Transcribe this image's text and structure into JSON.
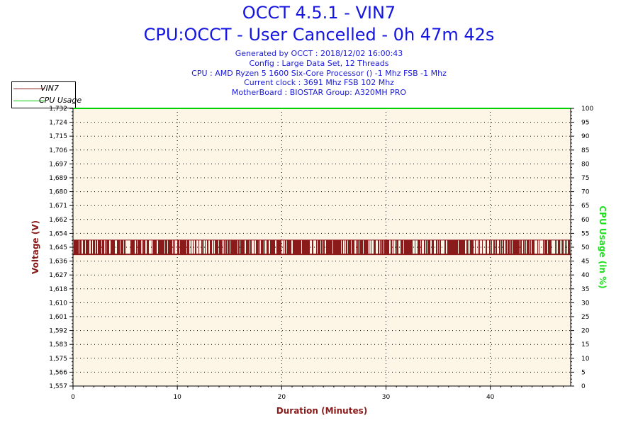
{
  "header": {
    "title": "OCCT 4.5.1 - VIN7",
    "subtitle": "CPU:OCCT - User Cancelled - 0h 47m 42s",
    "info_lines": [
      "Generated by OCCT : 2018/12/02 16:00:43",
      "Config : Large Data Set, 12 Threads",
      "CPU : AMD Ryzen 5 1600 Six-Core Processor () -1 Mhz FSB -1 Mhz",
      "Current clock : 3691 Mhz FSB 102 Mhz",
      "MotherBoard : BIOSTAR Group: A320MH PRO"
    ]
  },
  "legend": {
    "items": [
      {
        "label": "VIN7",
        "color": "#8b1a1a"
      },
      {
        "label": "CPU Usage",
        "color": "#00d000"
      }
    ]
  },
  "chart_data": {
    "type": "line",
    "xlabel": "Duration (Minutes)",
    "ylabel": "Voltage (V)",
    "y2label": "CPU Usage (in %)",
    "xlim": [
      0,
      47.7
    ],
    "x_ticks": [
      "0",
      "10",
      "20",
      "30",
      "40"
    ],
    "ylim": [
      1.557,
      1.732
    ],
    "y_ticks": [
      "1,557",
      "1,566",
      "1,575",
      "1,583",
      "1,592",
      "1,601",
      "1,610",
      "1,618",
      "1,627",
      "1,636",
      "1,645",
      "1,654",
      "1,662",
      "1,671",
      "1,680",
      "1,689",
      "1,697",
      "1,706",
      "1,715",
      "1,724",
      "1,732"
    ],
    "y2lim": [
      0,
      100
    ],
    "y2_ticks": [
      "0",
      "5",
      "10",
      "15",
      "20",
      "25",
      "30",
      "35",
      "40",
      "45",
      "50",
      "55",
      "60",
      "65",
      "70",
      "75",
      "80",
      "85",
      "90",
      "95",
      "100"
    ],
    "grid": true,
    "series": [
      {
        "name": "VIN7",
        "axis": "left",
        "color": "#8b1a1a",
        "low": 1.64,
        "high": 1.649,
        "pattern": "oscillating between 1.640 and 1.649 V"
      },
      {
        "name": "CPU Usage",
        "axis": "right",
        "color": "#00d000",
        "x": [
          0,
          47.7
        ],
        "values": [
          100,
          100
        ]
      }
    ]
  },
  "colors": {
    "plot_background": "#fdf5e6",
    "title": "#1515e0",
    "voltage_axis": "#8b1a1a",
    "cpu_axis": "#22dd22"
  }
}
